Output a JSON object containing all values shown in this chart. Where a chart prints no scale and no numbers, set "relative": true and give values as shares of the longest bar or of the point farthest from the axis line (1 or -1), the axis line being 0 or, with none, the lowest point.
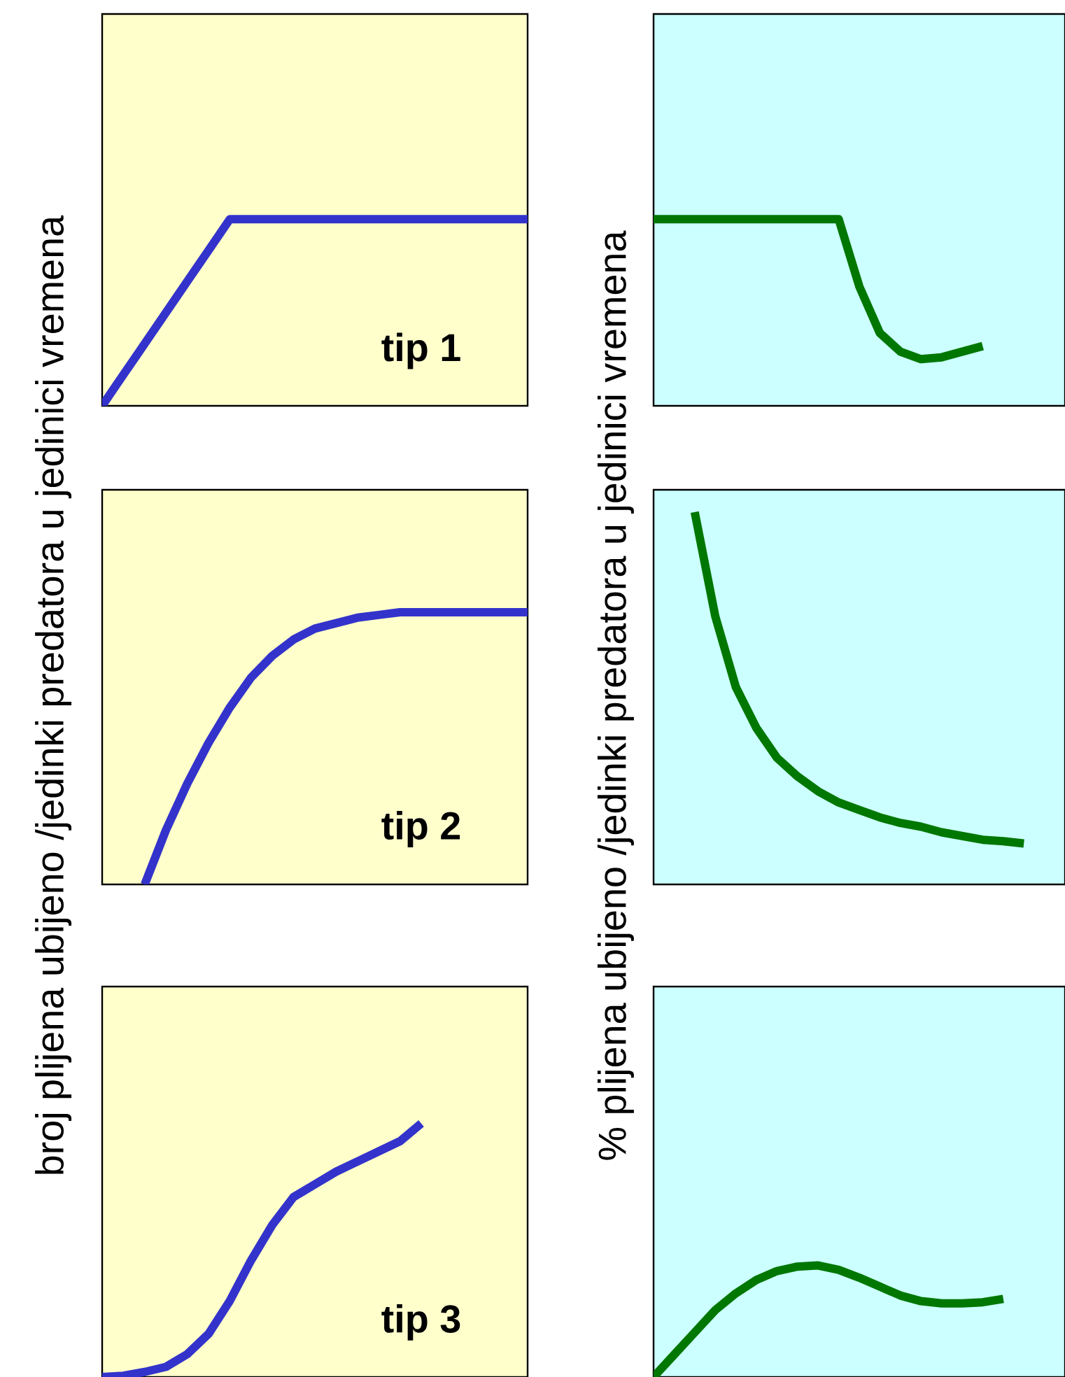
{
  "chart_data": [
    {
      "type": "line",
      "relative": true,
      "tick_labels": false,
      "ylabel": "broj  plijena ubijeno /jedinki predatora u jedinici vremena",
      "annotations": [
        "tip 1"
      ],
      "categories": [
        null,
        null,
        null,
        null,
        null,
        null,
        null,
        null,
        null,
        null,
        null,
        null,
        null,
        null,
        null,
        null,
        null,
        null,
        null,
        null,
        null
      ],
      "series": [
        {
          "color": "#3333cc",
          "values": [
            0,
            0.167,
            0.333,
            0.5,
            0.667,
            0.833,
            1,
            1,
            1,
            1,
            1,
            1,
            1,
            1,
            1,
            1,
            1,
            1,
            1,
            1,
            1
          ]
        }
      ]
    },
    {
      "type": "line",
      "relative": true,
      "tick_labels": false,
      "ylabel": "% plijena ubijeno /jedinki predatora u jedinici vremena",
      "categories": [
        null,
        null,
        null,
        null,
        null,
        null,
        null,
        null,
        null,
        null,
        null,
        null,
        null,
        null,
        null,
        null,
        null,
        null,
        null,
        null,
        null
      ],
      "series": [
        {
          "color": "#007700",
          "values": [
            1,
            1,
            1,
            1,
            1,
            1,
            1,
            1,
            1,
            1,
            0.64,
            0.39,
            0.29,
            0.25,
            0.26,
            0.29,
            0.32,
            null,
            null,
            null,
            null
          ]
        }
      ]
    },
    {
      "type": "line",
      "relative": true,
      "tick_labels": false,
      "annotations": [
        "tip 2"
      ],
      "categories": [
        null,
        null,
        null,
        null,
        null,
        null,
        null,
        null,
        null,
        null,
        null,
        null,
        null,
        null,
        null,
        null,
        null,
        null,
        null,
        null,
        null
      ],
      "series": [
        {
          "color": "#3333cc",
          "values": [
            null,
            null,
            0,
            0.2,
            0.37,
            0.52,
            0.65,
            0.76,
            0.84,
            0.9,
            0.94,
            0.96,
            0.98,
            0.99,
            1,
            1,
            1,
            1,
            1,
            1,
            1
          ]
        }
      ]
    },
    {
      "type": "line",
      "relative": true,
      "tick_labels": false,
      "categories": [
        null,
        null,
        null,
        null,
        null,
        null,
        null,
        null,
        null,
        null,
        null,
        null,
        null,
        null,
        null,
        null,
        null,
        null,
        null,
        null,
        null
      ],
      "series": [
        {
          "color": "#007700",
          "values": [
            null,
            null,
            1,
            0.72,
            0.53,
            0.42,
            0.34,
            0.29,
            0.25,
            0.22,
            0.2,
            0.18,
            0.165,
            0.155,
            0.14,
            0.13,
            0.12,
            0.116,
            0.11,
            null,
            null
          ]
        }
      ]
    },
    {
      "type": "line",
      "relative": true,
      "tick_labels": false,
      "annotations": [
        "tip 3"
      ],
      "categories": [
        null,
        null,
        null,
        null,
        null,
        null,
        null,
        null,
        null,
        null,
        null,
        null,
        null,
        null,
        null,
        null,
        null,
        null,
        null,
        null,
        null
      ],
      "series": [
        {
          "color": "#3333cc",
          "values": [
            0,
            0.005,
            0.02,
            0.04,
            0.09,
            0.17,
            0.3,
            0.46,
            0.6,
            0.71,
            0.76,
            0.81,
            0.85,
            0.89,
            0.93,
            1,
            null,
            null,
            null,
            null,
            null
          ]
        }
      ]
    },
    {
      "type": "line",
      "relative": true,
      "tick_labels": false,
      "categories": [
        null,
        null,
        null,
        null,
        null,
        null,
        null,
        null,
        null,
        null,
        null,
        null,
        null,
        null,
        null,
        null,
        null,
        null,
        null,
        null,
        null
      ],
      "series": [
        {
          "color": "#007700",
          "values": [
            0,
            0.2,
            0.4,
            0.6,
            0.75,
            0.87,
            0.95,
            0.99,
            1,
            0.96,
            0.89,
            0.81,
            0.73,
            0.68,
            0.66,
            0.66,
            0.67,
            0.7,
            null,
            null,
            null
          ]
        }
      ]
    }
  ]
}
